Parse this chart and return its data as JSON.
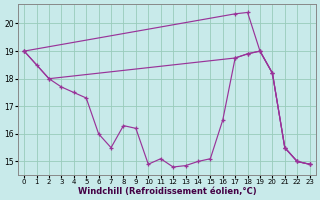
{
  "background_color": "#c8eaea",
  "grid_color": "#99ccbb",
  "line_color": "#993399",
  "xlabel": "Windchill (Refroidissement éolien,°C)",
  "xlim_min": 0,
  "xlim_max": 23,
  "ylim_min": 14.5,
  "ylim_max": 20.7,
  "yticks": [
    15,
    16,
    17,
    18,
    19,
    20
  ],
  "xticks": [
    0,
    1,
    2,
    3,
    4,
    5,
    6,
    7,
    8,
    9,
    10,
    11,
    12,
    13,
    14,
    15,
    16,
    17,
    18,
    19,
    20,
    21,
    22,
    23
  ],
  "line1_x": [
    0,
    1,
    2,
    3,
    4,
    5,
    6,
    7,
    8,
    9,
    10,
    11,
    12,
    13,
    14,
    15,
    16,
    17,
    18,
    19,
    20,
    21,
    22,
    23
  ],
  "line1_y": [
    19.0,
    18.5,
    18.0,
    17.7,
    17.5,
    17.3,
    16.0,
    15.5,
    16.3,
    16.2,
    14.9,
    15.1,
    14.8,
    14.85,
    15.0,
    15.1,
    16.5,
    18.75,
    18.9,
    19.0,
    18.2,
    15.5,
    15.0,
    14.9
  ],
  "line2_x": [
    0,
    2,
    17,
    18,
    19,
    20,
    21,
    22,
    23
  ],
  "line2_y": [
    19.0,
    18.0,
    18.75,
    18.9,
    19.0,
    18.2,
    15.5,
    15.0,
    14.9
  ],
  "line3_x": [
    0,
    17,
    18,
    19,
    20,
    21,
    22,
    23
  ],
  "line3_y": [
    19.0,
    20.35,
    20.4,
    19.0,
    18.2,
    15.5,
    15.0,
    14.9
  ]
}
